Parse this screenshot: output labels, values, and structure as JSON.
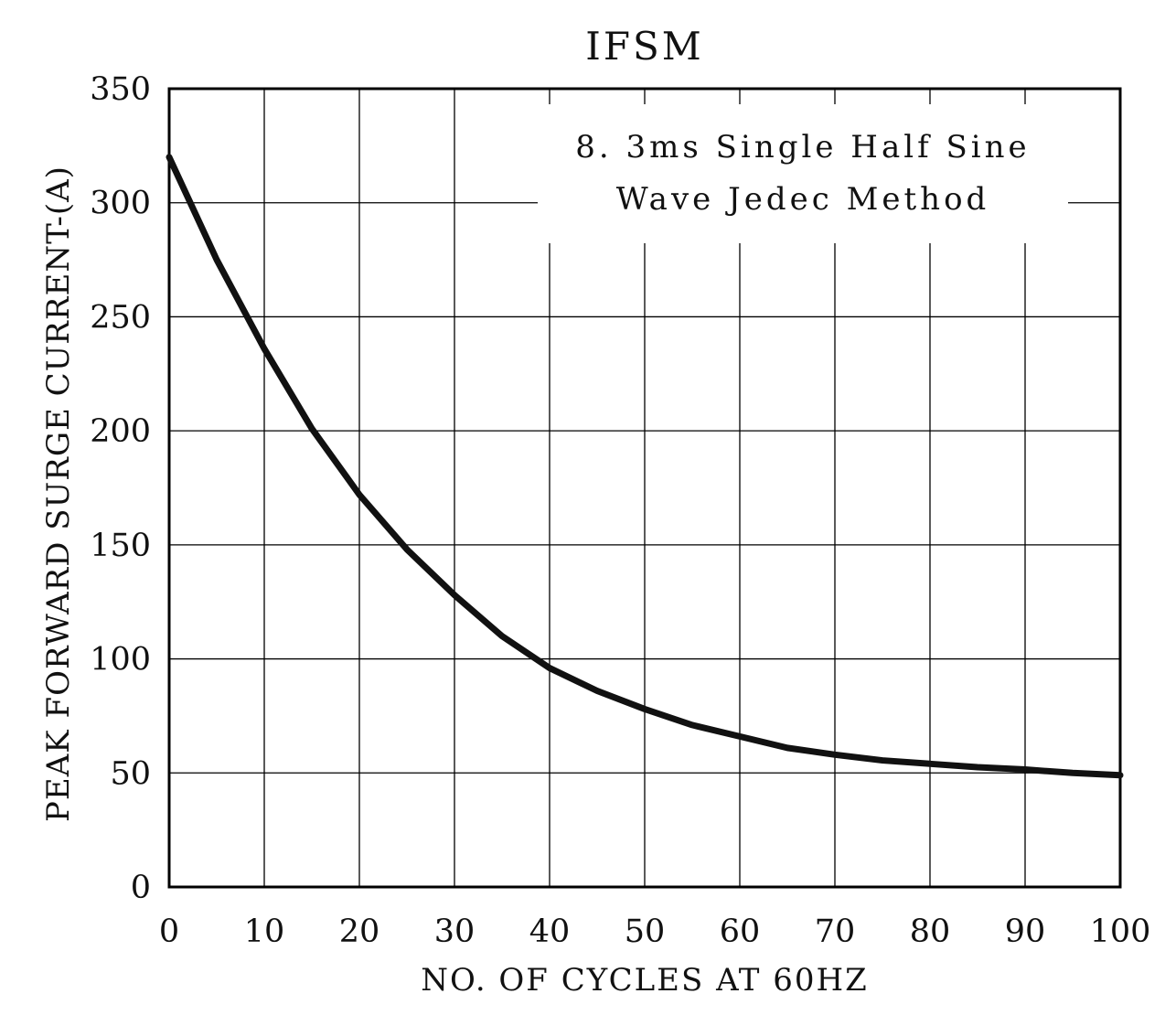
{
  "chart_data": {
    "type": "line",
    "title": "IFSM",
    "xlabel": "NO. OF CYCLES AT 60HZ",
    "ylabel": "PEAK FORWARD SURGE CURRENT-(A)",
    "annotation": {
      "line1": "8. 3ms Single Half Sine",
      "line2": "Wave Jedec Method"
    },
    "xlim": [
      0,
      100
    ],
    "ylim": [
      0,
      350
    ],
    "x_ticks": [
      0,
      10,
      20,
      30,
      40,
      50,
      60,
      70,
      80,
      90,
      100
    ],
    "y_ticks": [
      0,
      50,
      100,
      150,
      200,
      250,
      300,
      350
    ],
    "grid": true,
    "legend": false,
    "series": [
      {
        "name": "IFSM",
        "x": [
          0,
          5,
          10,
          15,
          20,
          25,
          30,
          35,
          40,
          45,
          50,
          55,
          60,
          65,
          70,
          75,
          80,
          85,
          90,
          95,
          100
        ],
        "y": [
          320,
          275,
          236,
          201,
          172,
          148,
          128,
          110,
          96,
          86,
          78,
          71,
          66,
          61,
          58,
          55.5,
          54,
          52.5,
          51.5,
          50,
          49
        ]
      }
    ],
    "line_color": "#111111",
    "line_width": 7,
    "grid_color": "#000000",
    "axis_color": "#000000"
  }
}
